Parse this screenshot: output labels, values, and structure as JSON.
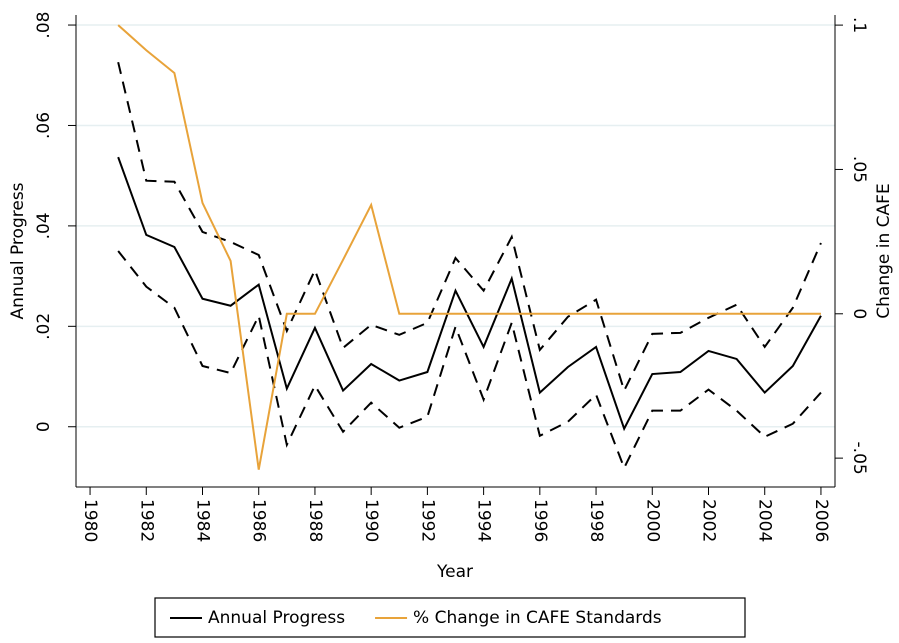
{
  "chart_data": {
    "type": "line",
    "xlabel": "Year",
    "ylabel": "Annual Progress",
    "y2label": "Change in CAFE",
    "x": [
      1981,
      1982,
      1983,
      1984,
      1985,
      1986,
      1987,
      1988,
      1989,
      1990,
      1991,
      1992,
      1993,
      1994,
      1995,
      1996,
      1997,
      1998,
      1999,
      2000,
      2001,
      2002,
      2003,
      2004,
      2005,
      2006
    ],
    "series": [
      {
        "name": "Annual Progress",
        "color": "#000000",
        "dash": false,
        "values": [
          0.0537,
          0.0382,
          0.0358,
          0.0255,
          0.0241,
          0.0283,
          0.0076,
          0.0197,
          0.0072,
          0.0125,
          0.0092,
          0.0109,
          0.0271,
          0.0159,
          0.0295,
          0.0068,
          0.0119,
          0.0159,
          -0.0004,
          0.0105,
          0.0109,
          0.0151,
          0.0135,
          0.0068,
          0.0121,
          0.0221
        ]
      },
      {
        "color": "#000000",
        "dash": true,
        "values": [
          0.0726,
          0.049,
          0.0488,
          0.0388,
          0.0368,
          0.0342,
          0.0191,
          0.0312,
          0.0157,
          0.0203,
          0.0183,
          0.0207,
          0.0336,
          0.0271,
          0.0378,
          0.0153,
          0.0219,
          0.0253,
          0.0072,
          0.0185,
          0.0187,
          0.0217,
          0.0243,
          0.0159,
          0.0237,
          0.0366
        ]
      },
      {
        "color": "#000000",
        "dash": true,
        "values": [
          0.035,
          0.0279,
          0.0237,
          0.0121,
          0.0107,
          0.0221,
          -0.0036,
          0.0082,
          -0.001,
          0.0048,
          -0.0002,
          0.002,
          0.0199,
          0.0054,
          0.0207,
          -0.0018,
          0.001,
          0.0064,
          -0.0082,
          0.0032,
          0.0032,
          0.0074,
          0.0032,
          -0.002,
          0.0006,
          0.0068
        ]
      },
      {
        "name": "% Change in CAFE Standards",
        "color": "#e8a33a",
        "dash": false,
        "axis": "y2",
        "values": [
          0.1,
          0.0913,
          0.0834,
          0.0384,
          0.0183,
          -0.054,
          0,
          0,
          0.0187,
          0.0377,
          0,
          0,
          0,
          0,
          0,
          0,
          0,
          0,
          0,
          0,
          0,
          0,
          0,
          0,
          0,
          0
        ]
      }
    ],
    "xlim": [
      1979.5,
      2006.5
    ],
    "xticks": [
      1980,
      1982,
      1984,
      1986,
      1988,
      1990,
      1992,
      1994,
      1996,
      1998,
      2000,
      2002,
      2004,
      2006
    ],
    "ylim": [
      -0.012,
      0.082
    ],
    "yticks": [
      0,
      {
        "value": 0.02,
        "label": ".02"
      },
      {
        "value": 0.04,
        "label": ".04"
      },
      {
        "value": 0.06,
        "label": ".06"
      },
      {
        "value": 0.08,
        "label": ".08"
      }
    ],
    "y2lim": [
      -0.06,
      0.1035
    ],
    "y2ticks": [
      {
        "value": -0.05,
        "label": "-.05"
      },
      0,
      {
        "value": 0.05,
        "label": ".05"
      },
      {
        "value": 0.1,
        "label": ".1"
      }
    ],
    "grid": true,
    "legend": "bottom"
  }
}
